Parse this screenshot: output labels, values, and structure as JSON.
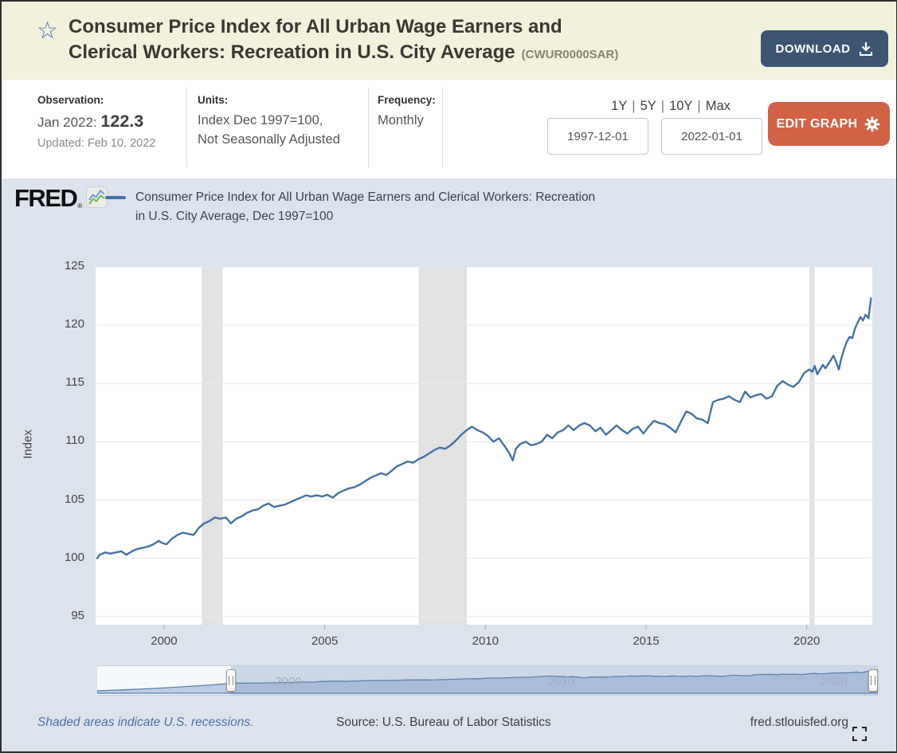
{
  "header": {
    "title": "Consumer Price Index for All Urban Wage Earners and Clerical Workers: Recreation in U.S. City Average",
    "title_line1": "Consumer Price Index for All Urban Wage Earners and",
    "title_line2": "Clerical Workers: Recreation in U.S. City Average",
    "series_id": "(CWUR0000SAR)",
    "download_label": "DOWNLOAD"
  },
  "observation": {
    "label": "Observation:",
    "date_label": "Jan 2022: ",
    "value": "122.3",
    "updated": "Updated: Feb 10, 2022"
  },
  "units": {
    "label": "Units:",
    "line1": "Index Dec 1997=100,",
    "line2": "Not Seasonally Adjusted"
  },
  "frequency": {
    "label": "Frequency:",
    "value": "Monthly"
  },
  "range": {
    "presets": [
      "1Y",
      "5Y",
      "10Y",
      "Max"
    ],
    "separator": "|",
    "start_date": "1997-12-01",
    "end_date": "2022-01-01",
    "edit_label": "EDIT GRAPH"
  },
  "branding": {
    "logo_text": "FRED",
    "reg": "®"
  },
  "legend": {
    "line1": "Consumer Price Index for All Urban Wage Earners and Clerical Workers: Recreation",
    "line2": "in U.S. City Average, Dec 1997=100"
  },
  "footer": {
    "recessions_note": "Shaded areas indicate U.S. recessions.",
    "source": "Source: U.S. Bureau of Labor Statistics",
    "site": "fred.stlouisfed.org"
  },
  "icons": {
    "favorite_star": "☆"
  },
  "colors": {
    "header_cream": "#f1f1dc",
    "download_navy": "#3c5573",
    "edit_orange": "#d26245",
    "chart_bg": "#dce3ed",
    "line_blue": "#4572a7",
    "recession_gray": "#e2e2e2",
    "gridline": "#e7e7e7",
    "slider_fill": "#8da8d0",
    "slider_line": "#5b82b0"
  },
  "chart_data": {
    "type": "line",
    "title": "Consumer Price Index for All Urban Wage Earners and Clerical Workers: Recreation in U.S. City Average, Dec 1997=100",
    "xlabel": "",
    "ylabel": "Index",
    "grid": true,
    "legend_position": "top",
    "x_ticks": [
      2000,
      2005,
      2010,
      2015,
      2020
    ],
    "y_ticks": [
      95,
      100,
      105,
      110,
      115,
      120,
      125
    ],
    "xlim": [
      1997.87,
      2022.04
    ],
    "ylim": [
      94.3,
      125
    ],
    "recessions": [
      [
        2001.17,
        2001.83
      ],
      [
        2007.92,
        2009.42
      ],
      [
        2020.08,
        2020.25
      ]
    ],
    "series": [
      {
        "name": "Consumer Price Index for All Urban Wage Earners and Clerical Workers: Recreation in U.S. City Average",
        "units": "Index Dec 1997=100",
        "frequency": "Monthly",
        "points": [
          [
            1997.92,
            100.0
          ],
          [
            1998.0,
            100.3
          ],
          [
            1998.17,
            100.5
          ],
          [
            1998.33,
            100.4
          ],
          [
            1998.5,
            100.5
          ],
          [
            1998.67,
            100.6
          ],
          [
            1998.83,
            100.3
          ],
          [
            1999.0,
            100.6
          ],
          [
            1999.17,
            100.8
          ],
          [
            1999.33,
            100.9
          ],
          [
            1999.5,
            101.0
          ],
          [
            1999.67,
            101.2
          ],
          [
            1999.83,
            101.5
          ],
          [
            1999.95,
            101.3
          ],
          [
            2000.08,
            101.2
          ],
          [
            2000.25,
            101.7
          ],
          [
            2000.42,
            102.0
          ],
          [
            2000.58,
            102.2
          ],
          [
            2000.75,
            102.1
          ],
          [
            2000.92,
            102.0
          ],
          [
            2001.08,
            102.6
          ],
          [
            2001.25,
            103.0
          ],
          [
            2001.42,
            103.2
          ],
          [
            2001.58,
            103.5
          ],
          [
            2001.75,
            103.4
          ],
          [
            2001.92,
            103.5
          ],
          [
            2002.08,
            103.0
          ],
          [
            2002.25,
            103.4
          ],
          [
            2002.42,
            103.6
          ],
          [
            2002.58,
            103.9
          ],
          [
            2002.75,
            104.1
          ],
          [
            2002.92,
            104.2
          ],
          [
            2003.08,
            104.5
          ],
          [
            2003.25,
            104.7
          ],
          [
            2003.42,
            104.4
          ],
          [
            2003.58,
            104.5
          ],
          [
            2003.75,
            104.6
          ],
          [
            2003.92,
            104.8
          ],
          [
            2004.08,
            105.0
          ],
          [
            2004.25,
            105.2
          ],
          [
            2004.42,
            105.4
          ],
          [
            2004.58,
            105.3
          ],
          [
            2004.75,
            105.4
          ],
          [
            2004.92,
            105.3
          ],
          [
            2005.08,
            105.45
          ],
          [
            2005.25,
            105.2
          ],
          [
            2005.42,
            105.6
          ],
          [
            2005.58,
            105.8
          ],
          [
            2005.75,
            106.0
          ],
          [
            2005.92,
            106.1
          ],
          [
            2006.08,
            106.3
          ],
          [
            2006.25,
            106.6
          ],
          [
            2006.42,
            106.9
          ],
          [
            2006.58,
            107.1
          ],
          [
            2006.75,
            107.3
          ],
          [
            2006.92,
            107.15
          ],
          [
            2007.08,
            107.5
          ],
          [
            2007.25,
            107.9
          ],
          [
            2007.42,
            108.1
          ],
          [
            2007.58,
            108.3
          ],
          [
            2007.75,
            108.2
          ],
          [
            2007.92,
            108.5
          ],
          [
            2008.08,
            108.7
          ],
          [
            2008.25,
            109.0
          ],
          [
            2008.42,
            109.3
          ],
          [
            2008.58,
            109.5
          ],
          [
            2008.75,
            109.4
          ],
          [
            2008.92,
            109.7
          ],
          [
            2009.08,
            110.1
          ],
          [
            2009.25,
            110.6
          ],
          [
            2009.42,
            111.0
          ],
          [
            2009.58,
            111.3
          ],
          [
            2009.75,
            111.0
          ],
          [
            2009.92,
            110.8
          ],
          [
            2010.08,
            110.5
          ],
          [
            2010.25,
            110.0
          ],
          [
            2010.42,
            110.3
          ],
          [
            2010.58,
            109.7
          ],
          [
            2010.75,
            109.0
          ],
          [
            2010.85,
            108.4
          ],
          [
            2010.95,
            109.4
          ],
          [
            2011.08,
            109.8
          ],
          [
            2011.25,
            110.0
          ],
          [
            2011.42,
            109.7
          ],
          [
            2011.58,
            109.8
          ],
          [
            2011.75,
            110.0
          ],
          [
            2011.92,
            110.6
          ],
          [
            2012.08,
            110.3
          ],
          [
            2012.25,
            110.8
          ],
          [
            2012.42,
            111.0
          ],
          [
            2012.58,
            111.4
          ],
          [
            2012.75,
            111.0
          ],
          [
            2012.92,
            111.4
          ],
          [
            2013.08,
            111.6
          ],
          [
            2013.25,
            111.4
          ],
          [
            2013.42,
            110.9
          ],
          [
            2013.58,
            111.2
          ],
          [
            2013.75,
            110.6
          ],
          [
            2013.92,
            111.0
          ],
          [
            2014.08,
            111.4
          ],
          [
            2014.25,
            111.0
          ],
          [
            2014.42,
            110.7
          ],
          [
            2014.58,
            111.1
          ],
          [
            2014.75,
            111.3
          ],
          [
            2014.92,
            110.7
          ],
          [
            2015.08,
            111.3
          ],
          [
            2015.25,
            111.8
          ],
          [
            2015.42,
            111.6
          ],
          [
            2015.58,
            111.5
          ],
          [
            2015.75,
            111.2
          ],
          [
            2015.92,
            110.8
          ],
          [
            2016.08,
            111.7
          ],
          [
            2016.25,
            112.6
          ],
          [
            2016.42,
            112.4
          ],
          [
            2016.58,
            112.0
          ],
          [
            2016.75,
            111.9
          ],
          [
            2016.92,
            111.6
          ],
          [
            2017.08,
            113.4
          ],
          [
            2017.25,
            113.6
          ],
          [
            2017.42,
            113.7
          ],
          [
            2017.58,
            113.9
          ],
          [
            2017.75,
            113.6
          ],
          [
            2017.92,
            113.4
          ],
          [
            2018.08,
            114.3
          ],
          [
            2018.25,
            113.8
          ],
          [
            2018.42,
            114.0
          ],
          [
            2018.58,
            114.1
          ],
          [
            2018.75,
            113.7
          ],
          [
            2018.92,
            113.9
          ],
          [
            2019.08,
            114.8
          ],
          [
            2019.25,
            115.2
          ],
          [
            2019.42,
            114.9
          ],
          [
            2019.58,
            114.7
          ],
          [
            2019.75,
            115.1
          ],
          [
            2019.92,
            115.9
          ],
          [
            2020.08,
            116.2
          ],
          [
            2020.17,
            116.0
          ],
          [
            2020.25,
            116.5
          ],
          [
            2020.33,
            115.8
          ],
          [
            2020.5,
            116.6
          ],
          [
            2020.58,
            116.3
          ],
          [
            2020.75,
            117.0
          ],
          [
            2020.83,
            117.4
          ],
          [
            2020.92,
            116.8
          ],
          [
            2021.0,
            116.2
          ],
          [
            2021.08,
            117.2
          ],
          [
            2021.17,
            118.0
          ],
          [
            2021.25,
            118.6
          ],
          [
            2021.33,
            119.0
          ],
          [
            2021.42,
            118.9
          ],
          [
            2021.5,
            119.7
          ],
          [
            2021.58,
            120.2
          ],
          [
            2021.67,
            120.7
          ],
          [
            2021.75,
            120.4
          ],
          [
            2021.83,
            120.9
          ],
          [
            2021.92,
            120.6
          ],
          [
            2022.0,
            122.3
          ]
        ]
      }
    ]
  },
  "slider": {
    "year_labels": [
      2000,
      2010,
      2020
    ],
    "domain": [
      1993.0,
      2021.6
    ],
    "selection": [
      1997.917,
      2022.0
    ],
    "value_range": [
      85,
      124
    ],
    "lead_in": [
      [
        1993.0,
        88.8
      ],
      [
        1994.0,
        90.3
      ],
      [
        1995.0,
        92.2
      ],
      [
        1996.0,
        94.6
      ],
      [
        1997.0,
        97.2
      ],
      [
        1997.92,
        100.0
      ]
    ]
  }
}
